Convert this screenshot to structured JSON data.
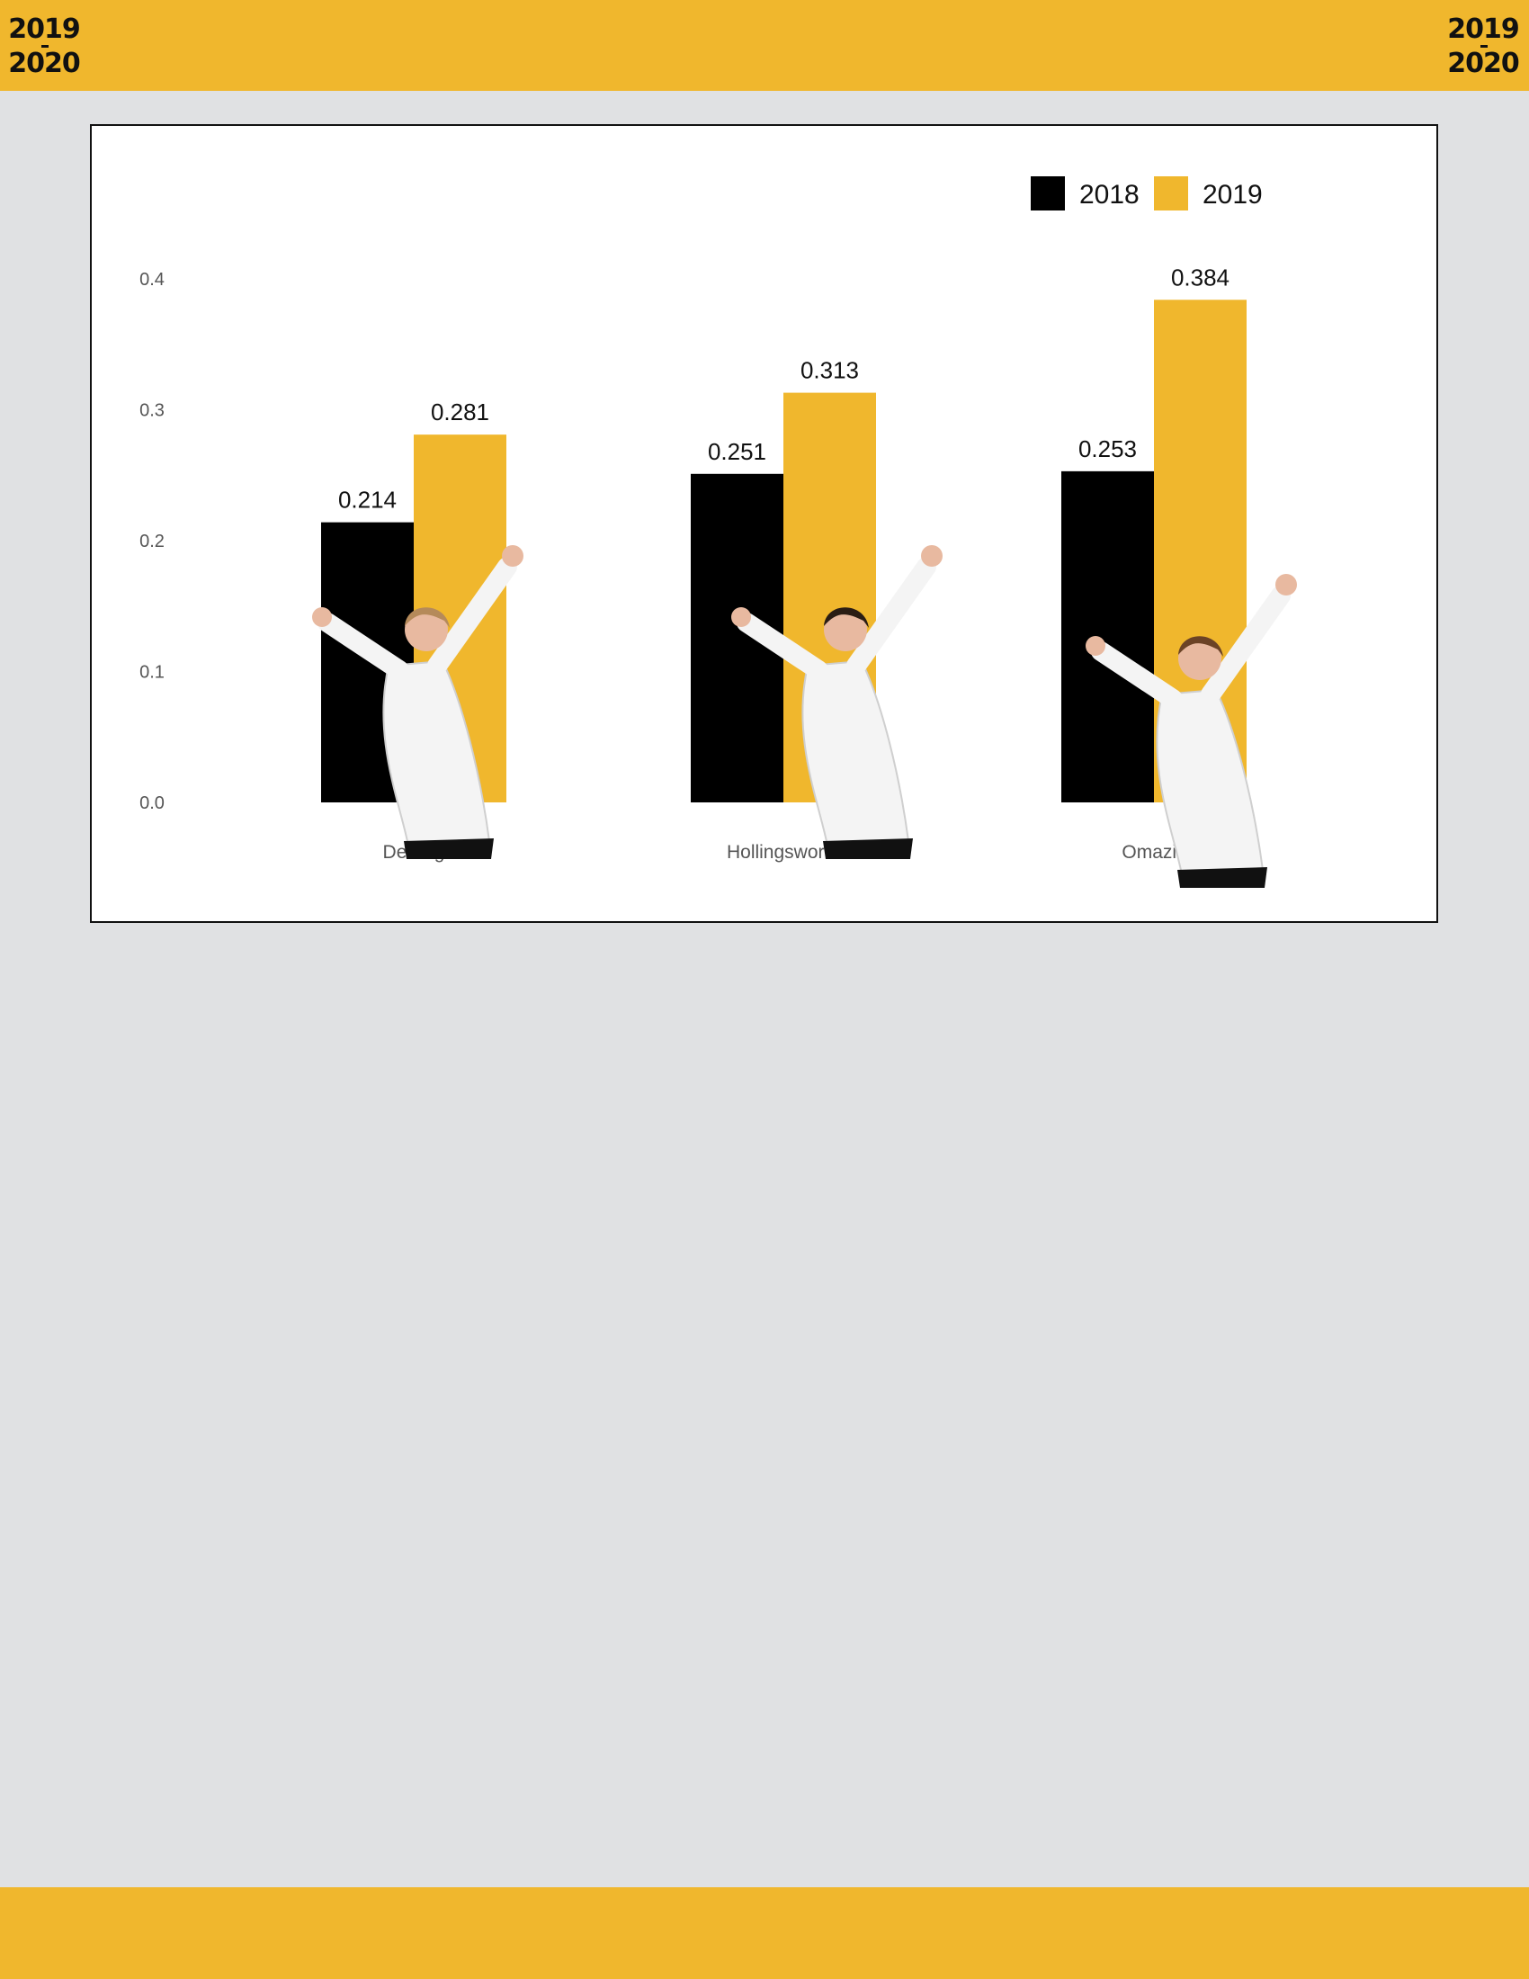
{
  "header": {
    "season_left_top": "2019",
    "season_left_bottom": "2020",
    "season_right_top": "2019",
    "season_right_bottom": "2020"
  },
  "colors": {
    "band": "#f0b72d",
    "background": "#e0e1e3",
    "series_2018": "#000000",
    "series_2019": "#f0b72d"
  },
  "chart_data": {
    "type": "bar",
    "categories": [
      "Deberg",
      "Hollingsworth",
      "Omazic"
    ],
    "series": [
      {
        "name": "2018",
        "values": [
          0.214,
          0.251,
          0.253
        ],
        "labels": [
          "0.214",
          "0.251",
          "0.253"
        ]
      },
      {
        "name": "2019",
        "values": [
          0.281,
          0.313,
          0.384
        ],
        "labels": [
          "0.281",
          "0.313",
          "0.384"
        ]
      }
    ],
    "yticks": [
      "0.0",
      "0.1",
      "0.2",
      "0.3",
      "0.4"
    ],
    "ylim": [
      0,
      0.4
    ],
    "grid": false,
    "legend_position": "top-right",
    "images": [
      "volleyball-player-12-photo",
      "volleyball-player-11-photo",
      "volleyball-player-9-photo"
    ]
  }
}
